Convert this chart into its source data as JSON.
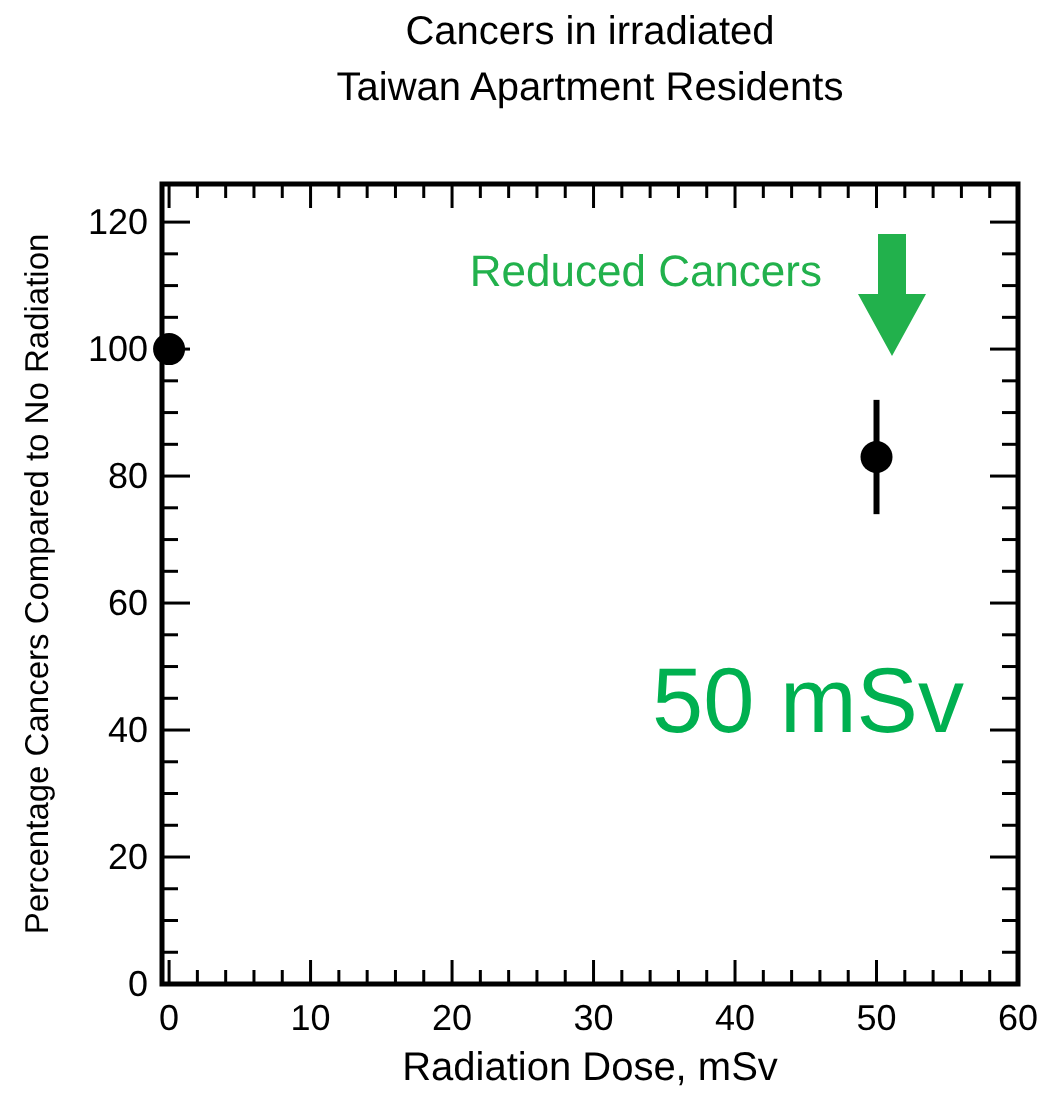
{
  "chart_data": {
    "type": "scatter",
    "title": "Cancers in irradiated\nTaiwan Apartment Residents",
    "xlabel": "Radiation Dose, mSv",
    "ylabel": "Percentage Cancers Compared to No Radiation",
    "x": [
      0,
      50
    ],
    "values": [
      100,
      83
    ],
    "errors": [
      null,
      9
    ],
    "color": "#000000",
    "marker": "circle",
    "xlim": [
      -0.5,
      60
    ],
    "ylim": [
      0,
      126
    ],
    "xticks": [
      0,
      {
        "value": 2,
        "label": null
      },
      {
        "value": 4,
        "label": null
      },
      {
        "value": 6,
        "label": null
      },
      {
        "value": 8,
        "label": null
      },
      10,
      {
        "value": 12,
        "label": null
      },
      {
        "value": 14,
        "label": null
      },
      {
        "value": 16,
        "label": null
      },
      {
        "value": 18,
        "label": null
      },
      20,
      {
        "value": 22,
        "label": null
      },
      {
        "value": 24,
        "label": null
      },
      {
        "value": 26,
        "label": null
      },
      {
        "value": 28,
        "label": null
      },
      30,
      {
        "value": 32,
        "label": null
      },
      {
        "value": 34,
        "label": null
      },
      {
        "value": 36,
        "label": null
      },
      {
        "value": 38,
        "label": null
      },
      40,
      {
        "value": 42,
        "label": null
      },
      {
        "value": 44,
        "label": null
      },
      {
        "value": 46,
        "label": null
      },
      {
        "value": 48,
        "label": null
      },
      50,
      {
        "value": 52,
        "label": null
      },
      {
        "value": 54,
        "label": null
      },
      {
        "value": 56,
        "label": null
      },
      {
        "value": 58,
        "label": null
      },
      60
    ],
    "yticks": [
      0,
      {
        "value": 5,
        "label": null
      },
      {
        "value": 10,
        "label": null
      },
      {
        "value": 15,
        "label": null
      },
      20,
      {
        "value": 25,
        "label": null
      },
      {
        "value": 30,
        "label": null
      },
      {
        "value": 35,
        "label": null
      },
      40,
      {
        "value": 45,
        "label": null
      },
      {
        "value": 50,
        "label": null
      },
      {
        "value": 55,
        "label": null
      },
      60,
      {
        "value": 65,
        "label": null
      },
      {
        "value": 70,
        "label": null
      },
      {
        "value": 75,
        "label": null
      },
      80,
      {
        "value": 85,
        "label": null
      },
      {
        "value": 90,
        "label": null
      },
      {
        "value": 95,
        "label": null
      },
      100,
      {
        "value": 105,
        "label": null
      },
      {
        "value": 110,
        "label": null
      },
      {
        "value": 115,
        "label": null
      },
      120
    ],
    "annotations": [
      "Reduced Cancers",
      "50 mSv"
    ]
  }
}
